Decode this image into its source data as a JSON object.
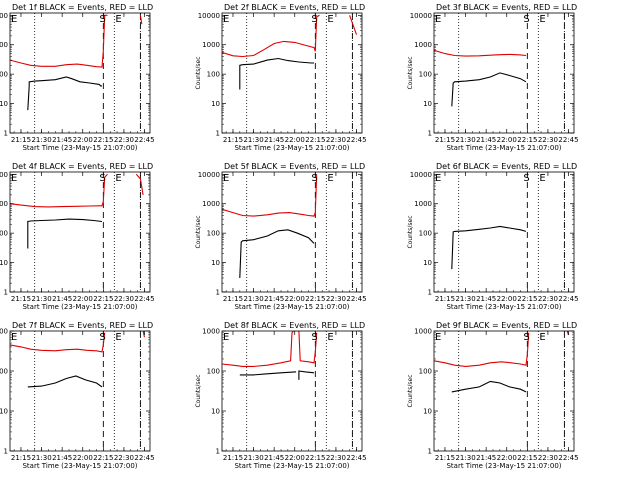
{
  "figure": {
    "xlabel": "Start Time (23-May-15 21:07:00)",
    "ylabel": "Counts/sec",
    "xticks": [
      "21:15",
      "21:30",
      "21:45",
      "22:00",
      "22:15",
      "22:30",
      "22:45"
    ],
    "yticks": [
      "1",
      "10",
      "100",
      "1000",
      "10000"
    ],
    "series_colors": {
      "Events": "#000000",
      "LLD": "#e00000"
    },
    "marker_labels": {
      "S": "S",
      "E": "E"
    }
  },
  "chart_data": [
    {
      "type": "line",
      "title": "Det 1f BLACK = Events, RED = LLD",
      "xlim": [
        "21:07",
        "22:49"
      ],
      "ylim": [
        1,
        12000
      ],
      "yscale": "log",
      "vlines": {
        "dotted": [
          "21:25",
          "22:23",
          "22:42"
        ],
        "dashed": [
          "22:15",
          "22:42"
        ]
      },
      "markers": [
        {
          "label": "E",
          "at": "21:07"
        },
        {
          "label": "S",
          "at": "22:15"
        },
        {
          "label": "E",
          "at": "22:23"
        }
      ],
      "series": [
        {
          "name": "BLACK = Events",
          "color": "#000000",
          "x": [
            "21:20",
            "21:21",
            "21:21",
            "21:25",
            "21:30",
            "21:40",
            "21:48",
            "21:52",
            "21:58",
            "22:05",
            "22:12",
            "22:13",
            "22:14"
          ],
          "y": [
            6,
            40,
            55,
            58,
            60,
            65,
            80,
            70,
            55,
            50,
            45,
            40,
            40
          ]
        },
        {
          "name": "RED = LLD",
          "color": "#e00000",
          "x": [
            "21:07",
            "21:15",
            "21:22",
            "21:30",
            "21:40",
            "21:48",
            "21:56",
            "22:03",
            "22:10",
            "22:14",
            "22:15",
            "22:16",
            "22:18"
          ],
          "y": [
            300,
            240,
            200,
            185,
            185,
            210,
            220,
            200,
            180,
            175,
            600,
            10000,
            10000
          ]
        },
        {
          "name": "RED = LLD",
          "color": "#e00000",
          "x": [
            "22:42",
            "22:43"
          ],
          "y": [
            10000,
            5000
          ]
        }
      ]
    },
    {
      "type": "line",
      "title": "Det 2f BLACK = Events, RED = LLD",
      "xlim": [
        "21:07",
        "22:49"
      ],
      "ylim": [
        1,
        12000
      ],
      "yscale": "log",
      "vlines": {
        "dotted": [
          "21:25",
          "22:23",
          "22:42"
        ],
        "dashed": [
          "22:15",
          "22:42"
        ]
      },
      "markers": [
        {
          "label": "E",
          "at": "21:07"
        },
        {
          "label": "S",
          "at": "22:15"
        },
        {
          "label": "E",
          "at": "22:23"
        }
      ],
      "series": [
        {
          "name": "BLACK = Events",
          "color": "#000000",
          "x": [
            "21:20",
            "21:20",
            "21:22",
            "21:30",
            "21:40",
            "21:48",
            "21:55",
            "22:03",
            "22:12",
            "22:14"
          ],
          "y": [
            30,
            200,
            210,
            220,
            300,
            340,
            290,
            260,
            240,
            240
          ]
        },
        {
          "name": "RED = LLD",
          "color": "#e00000",
          "x": [
            "21:07",
            "21:15",
            "21:22",
            "21:30",
            "21:38",
            "21:45",
            "21:52",
            "22:00",
            "22:08",
            "22:14",
            "22:15",
            "22:16",
            "22:18"
          ],
          "y": [
            550,
            420,
            400,
            430,
            700,
            1100,
            1300,
            1200,
            950,
            800,
            600,
            9000,
            10000
          ]
        },
        {
          "name": "RED = LLD",
          "color": "#e00000",
          "x": [
            "22:40",
            "22:43",
            "22:45"
          ],
          "y": [
            10000,
            4000,
            2200
          ]
        }
      ]
    },
    {
      "type": "line",
      "title": "Det 3f BLACK = Events, RED = LLD",
      "xlim": [
        "21:07",
        "22:49"
      ],
      "ylim": [
        1,
        12000
      ],
      "yscale": "log",
      "vlines": {
        "dotted": [
          "21:25",
          "22:23",
          "22:42"
        ],
        "dashed": [
          "22:15",
          "22:42"
        ]
      },
      "markers": [
        {
          "label": "E",
          "at": "21:07"
        },
        {
          "label": "S",
          "at": "22:15"
        },
        {
          "label": "E",
          "at": "22:23"
        }
      ],
      "series": [
        {
          "name": "BLACK = Events",
          "color": "#000000",
          "x": [
            "21:20",
            "21:21",
            "21:22",
            "21:30",
            "21:40",
            "21:48",
            "21:55",
            "22:02",
            "22:10",
            "22:14"
          ],
          "y": [
            8,
            50,
            55,
            58,
            65,
            80,
            110,
            90,
            70,
            55
          ]
        },
        {
          "name": "RED = LLD",
          "color": "#e00000",
          "x": [
            "21:07",
            "21:15",
            "21:22",
            "21:30",
            "21:40",
            "21:48",
            "21:55",
            "22:03",
            "22:10",
            "22:14"
          ],
          "y": [
            650,
            500,
            430,
            410,
            420,
            440,
            460,
            470,
            450,
            430
          ]
        }
      ]
    },
    {
      "type": "line",
      "title": "Det 4f BLACK = Events, RED = LLD",
      "xlim": [
        "21:07",
        "22:49"
      ],
      "ylim": [
        1,
        12000
      ],
      "yscale": "log",
      "vlines": {
        "dotted": [
          "21:25",
          "22:23",
          "22:42"
        ],
        "dashed": [
          "22:15",
          "22:42"
        ]
      },
      "markers": [
        {
          "label": "E",
          "at": "21:07"
        },
        {
          "label": "S",
          "at": "22:15"
        },
        {
          "label": "E",
          "at": "22:23"
        }
      ],
      "series": [
        {
          "name": "BLACK = Events",
          "color": "#000000",
          "x": [
            "21:20",
            "21:20",
            "21:22",
            "21:30",
            "21:40",
            "21:50",
            "22:00",
            "22:08",
            "22:14"
          ],
          "y": [
            30,
            250,
            260,
            270,
            280,
            300,
            290,
            270,
            250
          ]
        },
        {
          "name": "RED = LLD",
          "color": "#e00000",
          "x": [
            "21:07",
            "21:15",
            "21:25",
            "21:35",
            "21:45",
            "21:55",
            "22:05",
            "22:12",
            "22:14",
            "22:15",
            "22:16",
            "22:18"
          ],
          "y": [
            1000,
            900,
            800,
            780,
            800,
            820,
            840,
            850,
            850,
            1200,
            8000,
            10000
          ]
        },
        {
          "name": "RED = LLD",
          "color": "#e00000",
          "x": [
            "22:39",
            "22:42",
            "22:44"
          ],
          "y": [
            10000,
            7000,
            2000
          ]
        }
      ]
    },
    {
      "type": "line",
      "title": "Det 5f BLACK = Events, RED = LLD",
      "xlim": [
        "21:07",
        "22:49"
      ],
      "ylim": [
        1,
        12000
      ],
      "yscale": "log",
      "vlines": {
        "dotted": [
          "21:25",
          "22:23",
          "22:42"
        ],
        "dashed": [
          "22:15",
          "22:42"
        ]
      },
      "markers": [
        {
          "label": "E",
          "at": "21:07"
        },
        {
          "label": "S",
          "at": "22:15"
        },
        {
          "label": "E",
          "at": "22:23"
        }
      ],
      "series": [
        {
          "name": "BLACK = Events",
          "color": "#000000",
          "x": [
            "21:20",
            "21:21",
            "21:22",
            "21:30",
            "21:40",
            "21:48",
            "21:55",
            "22:02",
            "22:10",
            "22:14"
          ],
          "y": [
            3,
            50,
            55,
            60,
            80,
            120,
            130,
            100,
            70,
            45
          ]
        },
        {
          "name": "RED = LLD",
          "color": "#e00000",
          "x": [
            "21:07",
            "21:15",
            "21:22",
            "21:30",
            "21:40",
            "21:48",
            "21:56",
            "22:03",
            "22:10",
            "22:14",
            "22:15",
            "22:16"
          ],
          "y": [
            650,
            500,
            400,
            380,
            420,
            480,
            500,
            450,
            400,
            380,
            500,
            10000
          ]
        }
      ]
    },
    {
      "type": "line",
      "title": "Det 6f BLACK = Events, RED = LLD",
      "xlim": [
        "21:07",
        "22:49"
      ],
      "ylim": [
        1,
        12000
      ],
      "yscale": "log",
      "vlines": {
        "dotted": [
          "21:25",
          "22:23",
          "22:42"
        ],
        "dashed": [
          "22:15",
          "22:42"
        ]
      },
      "markers": [
        {
          "label": "E",
          "at": "21:07"
        },
        {
          "label": "S",
          "at": "22:15"
        },
        {
          "label": "E",
          "at": "22:23"
        }
      ],
      "series": [
        {
          "name": "BLACK = Events",
          "color": "#000000",
          "x": [
            "21:20",
            "21:21",
            "21:22",
            "21:30",
            "21:40",
            "21:48",
            "21:55",
            "22:02",
            "22:10",
            "22:14"
          ],
          "y": [
            6,
            110,
            115,
            120,
            135,
            150,
            170,
            150,
            130,
            115
          ]
        }
      ]
    },
    {
      "type": "line",
      "title": "Det 7f BLACK = Events, RED = LLD",
      "xlim": [
        "21:07",
        "22:49"
      ],
      "ylim": [
        1,
        1000
      ],
      "yscale": "log",
      "vlines": {
        "dotted": [
          "21:25",
          "22:23",
          "22:42"
        ],
        "dashed": [
          "22:15",
          "22:42"
        ]
      },
      "markers": [
        {
          "label": "E",
          "at": "21:07"
        },
        {
          "label": "S",
          "at": "22:15"
        },
        {
          "label": "E",
          "at": "22:23"
        }
      ],
      "series": [
        {
          "name": "BLACK = Events",
          "color": "#000000",
          "x": [
            "21:20",
            "21:30",
            "21:40",
            "21:48",
            "21:55",
            "22:02",
            "22:10",
            "22:14"
          ],
          "y": [
            40,
            42,
            50,
            65,
            75,
            60,
            50,
            40
          ]
        },
        {
          "name": "RED = LLD",
          "color": "#e00000",
          "x": [
            "21:07",
            "21:15",
            "21:22",
            "21:30",
            "21:40",
            "21:48",
            "21:56",
            "22:03",
            "22:10",
            "22:14",
            "22:15",
            "22:16"
          ],
          "y": [
            450,
            400,
            350,
            330,
            320,
            340,
            350,
            330,
            320,
            300,
            450,
            900
          ]
        },
        {
          "name": "RED = LLD",
          "color": "#e00000",
          "x": [
            "22:44",
            "22:45"
          ],
          "y": [
            1000,
            700
          ]
        }
      ]
    },
    {
      "type": "line",
      "title": "Det 8f BLACK = Events, RED = LLD",
      "xlim": [
        "21:07",
        "22:49"
      ],
      "ylim": [
        1,
        1000
      ],
      "yscale": "log",
      "vlines": {
        "dotted": [
          "21:25",
          "22:23",
          "22:42"
        ],
        "dashed": [
          "22:15",
          "22:42"
        ]
      },
      "markers": [
        {
          "label": "E",
          "at": "21:07"
        },
        {
          "label": "S",
          "at": "22:15"
        },
        {
          "label": "E",
          "at": "22:23"
        }
      ],
      "series": [
        {
          "name": "BLACK = Events",
          "color": "#000000",
          "x": [
            "21:20",
            "21:30",
            "21:40",
            "21:50",
            "22:00",
            "22:01"
          ],
          "y": [
            80,
            80,
            85,
            90,
            95,
            95
          ]
        },
        {
          "name": "BLACK = Events",
          "color": "#000000",
          "x": [
            "22:03",
            "22:03",
            "22:08",
            "22:14"
          ],
          "y": [
            60,
            100,
            95,
            90
          ]
        },
        {
          "name": "RED = LLD",
          "color": "#e00000",
          "x": [
            "21:07",
            "21:15",
            "21:22",
            "21:30",
            "21:40",
            "21:50",
            "21:57",
            "21:58",
            "21:59",
            "22:03",
            "22:04",
            "22:10",
            "22:14",
            "22:15",
            "22:16"
          ],
          "y": [
            150,
            140,
            130,
            130,
            140,
            160,
            180,
            900,
            1000,
            1000,
            180,
            170,
            160,
            300,
            900
          ]
        }
      ]
    },
    {
      "type": "line",
      "title": "Det 9f BLACK = Events, RED = LLD",
      "xlim": [
        "21:07",
        "22:49"
      ],
      "ylim": [
        1,
        1000
      ],
      "yscale": "log",
      "vlines": {
        "dotted": [
          "21:25",
          "22:23",
          "22:42"
        ],
        "dashed": [
          "22:15",
          "22:42"
        ]
      },
      "markers": [
        {
          "label": "E",
          "at": "21:07"
        },
        {
          "label": "S",
          "at": "22:15"
        },
        {
          "label": "E",
          "at": "22:23"
        }
      ],
      "series": [
        {
          "name": "BLACK = Events",
          "color": "#000000",
          "x": [
            "21:20",
            "21:30",
            "21:40",
            "21:48",
            "21:55",
            "22:02",
            "22:10",
            "22:14"
          ],
          "y": [
            30,
            35,
            40,
            55,
            50,
            40,
            35,
            30
          ]
        },
        {
          "name": "RED = LLD",
          "color": "#e00000",
          "x": [
            "21:07",
            "21:15",
            "21:22",
            "21:30",
            "21:40",
            "21:48",
            "21:56",
            "22:03",
            "22:10",
            "22:14",
            "22:15",
            "22:16"
          ],
          "y": [
            180,
            160,
            140,
            130,
            140,
            160,
            170,
            160,
            150,
            140,
            250,
            900
          ]
        },
        {
          "name": "RED = LLD",
          "color": "#e00000",
          "x": [
            "22:44",
            "22:45"
          ],
          "y": [
            1000,
            800
          ]
        }
      ]
    }
  ]
}
